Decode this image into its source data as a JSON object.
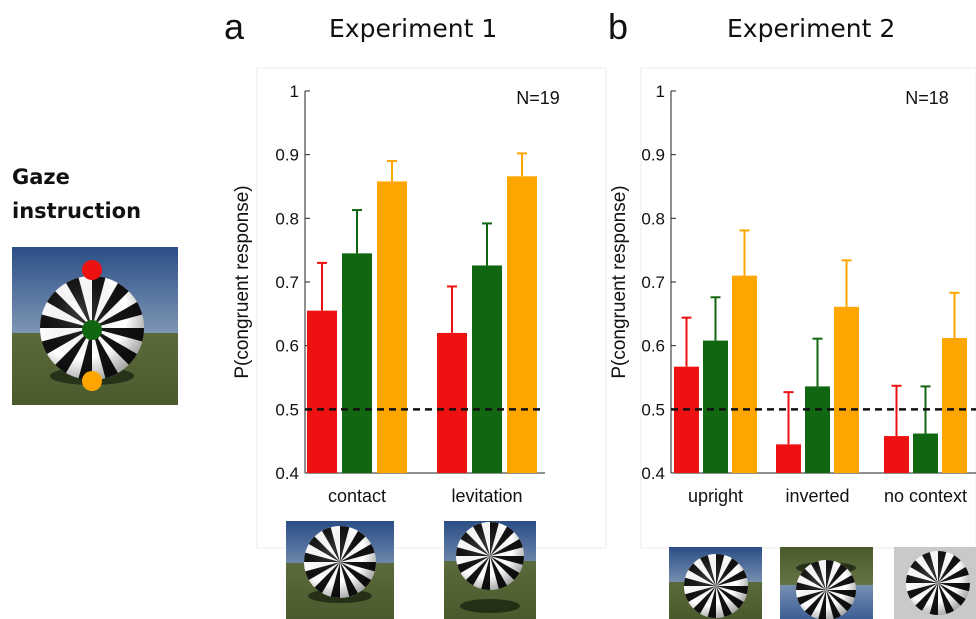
{
  "figure": {
    "gaze_instruction": [
      "Gaze",
      "instruction"
    ],
    "gaze_colors": [
      "#ee1111",
      "#116611",
      "#ffa500"
    ]
  },
  "panels": [
    {
      "letter": "a",
      "title": "Experiment 1",
      "n_label": "N=19",
      "stimuli": [
        "contact",
        "levitation"
      ]
    },
    {
      "letter": "b",
      "title": "Experiment 2",
      "n_label": "N=18",
      "stimuli": [
        "upright",
        "inverted",
        "no context"
      ]
    }
  ],
  "chart_data": [
    {
      "type": "bar",
      "title": "Experiment 1",
      "ylabel": "P(congruent response)",
      "xlabel": "",
      "categories": [
        "contact",
        "levitation"
      ],
      "ylim": [
        0.4,
        1
      ],
      "yticks": [
        0.4,
        0.5,
        0.6,
        0.7,
        0.8,
        0.9,
        1
      ],
      "ytick_labels": [
        "0.4",
        "0.5",
        "0.6",
        "0.7",
        "0.8",
        "0.9",
        "1"
      ],
      "annotation": "N=19",
      "reference_line": 0.5,
      "series": [
        {
          "color": "#ee1111",
          "values": [
            0.655,
            0.62
          ],
          "error": [
            0.075,
            0.073
          ]
        },
        {
          "color": "#116611",
          "values": [
            0.745,
            0.726
          ],
          "error": [
            0.068,
            0.066
          ]
        },
        {
          "color": "#ffa500",
          "values": [
            0.858,
            0.866
          ],
          "error": [
            0.032,
            0.036
          ]
        }
      ]
    },
    {
      "type": "bar",
      "title": "Experiment 2",
      "ylabel": "P(congruent response)",
      "xlabel": "",
      "categories": [
        "upright",
        "inverted",
        "no context"
      ],
      "ylim": [
        0.4,
        1
      ],
      "yticks": [
        0.4,
        0.5,
        0.6,
        0.7,
        0.8,
        0.9,
        1
      ],
      "ytick_labels": [
        "0.4",
        "0.5",
        "0.6",
        "0.7",
        "0.8",
        "0.9",
        "1"
      ],
      "annotation": "N=18",
      "reference_line": 0.5,
      "series": [
        {
          "color": "#ee1111",
          "values": [
            0.567,
            0.445,
            0.458
          ],
          "error": [
            0.077,
            0.082,
            0.079
          ]
        },
        {
          "color": "#116611",
          "values": [
            0.608,
            0.536,
            0.462
          ],
          "error": [
            0.068,
            0.075,
            0.074
          ]
        },
        {
          "color": "#ffa500",
          "values": [
            0.71,
            0.661,
            0.612
          ],
          "error": [
            0.071,
            0.073,
            0.071
          ]
        }
      ]
    }
  ]
}
